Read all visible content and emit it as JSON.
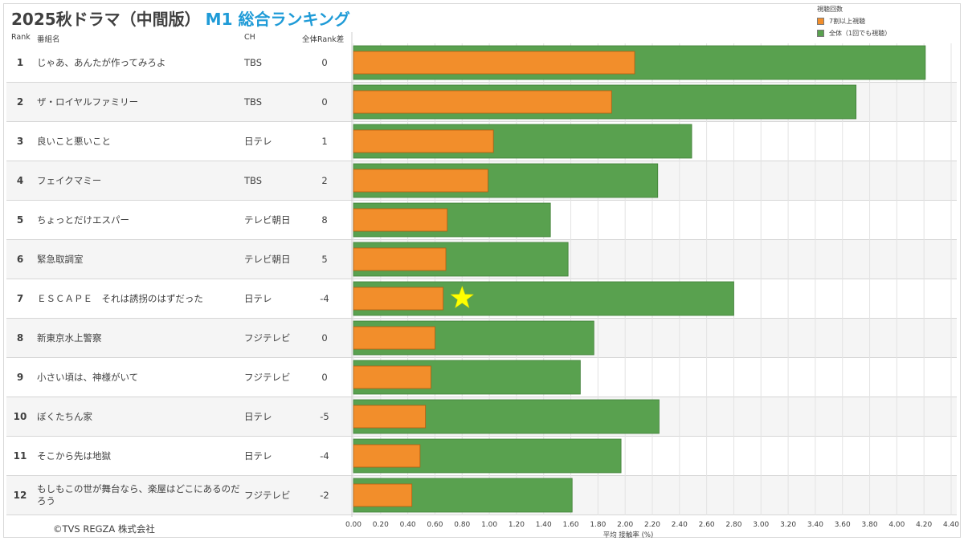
{
  "header": {
    "title_main": "2025秋ドラマ（中間版）",
    "title_sub": "M1 総合ランキング",
    "col_rank": "Rank",
    "col_name": "番組名",
    "col_ch": "CH",
    "col_diff": "全体Rank差"
  },
  "legend": {
    "title": "視聴回数",
    "items": [
      {
        "label": "7割以上視聴",
        "color": "#f28e2b"
      },
      {
        "label": "全体（1回でも視聴）",
        "color": "#59a14f"
      }
    ]
  },
  "rows": [
    {
      "rank": "1",
      "name": "じゃあ、あんたが作ってみろよ",
      "ch": "TBS",
      "diff": "0"
    },
    {
      "rank": "2",
      "name": "ザ・ロイヤルファミリー",
      "ch": "TBS",
      "diff": "0"
    },
    {
      "rank": "3",
      "name": "良いこと悪いこと",
      "ch": "日テレ",
      "diff": "1"
    },
    {
      "rank": "4",
      "name": "フェイクマミー",
      "ch": "TBS",
      "diff": "2"
    },
    {
      "rank": "5",
      "name": "ちょっとだけエスパー",
      "ch": "テレビ朝日",
      "diff": "8"
    },
    {
      "rank": "6",
      "name": "緊急取調室",
      "ch": "テレビ朝日",
      "diff": "5"
    },
    {
      "rank": "7",
      "name": "ＥＳＣＡＰＥ　それは誘拐のはずだった",
      "ch": "日テレ",
      "diff": "-4"
    },
    {
      "rank": "8",
      "name": "新東京水上警察",
      "ch": "フジテレビ",
      "diff": "0"
    },
    {
      "rank": "9",
      "name": "小さい頃は、神様がいて",
      "ch": "フジテレビ",
      "diff": "0"
    },
    {
      "rank": "10",
      "name": "ぼくたちん家",
      "ch": "日テレ",
      "diff": "-5"
    },
    {
      "rank": "11",
      "name": "そこから先は地獄",
      "ch": "日テレ",
      "diff": "-4"
    },
    {
      "rank": "12",
      "name": "もしもこの世が舞台なら、楽屋はどこにあるのだろう",
      "ch": "フジテレビ",
      "diff": "-2"
    }
  ],
  "chart_data": {
    "type": "bar",
    "orientation": "horizontal",
    "xlabel": "平均 接触率 (%)",
    "xlim": [
      0,
      4.4
    ],
    "xticks": [
      "0.00",
      "0.20",
      "0.40",
      "0.60",
      "0.80",
      "1.00",
      "1.20",
      "1.40",
      "1.60",
      "1.80",
      "2.00",
      "2.20",
      "2.40",
      "2.60",
      "2.80",
      "3.00",
      "3.20",
      "3.40",
      "3.60",
      "3.80",
      "4.00",
      "4.20",
      "4.40"
    ],
    "grid": true,
    "categories": [
      "じゃあ、あんたが作ってみろよ",
      "ザ・ロイヤルファミリー",
      "良いこと悪いこと",
      "フェイクマミー",
      "ちょっとだけエスパー",
      "緊急取調室",
      "ＥＳＣＡＰＥ　それは誘拐のはずだった",
      "新東京水上警察",
      "小さい頃は、神様がいて",
      "ぼくたちん家",
      "そこから先は地獄",
      "もしもこの世が舞台なら、楽屋はどこにあるのだろう"
    ],
    "series": [
      {
        "name": "全体（1回でも視聴）",
        "color": "#59a14f",
        "values": [
          4.21,
          3.7,
          2.49,
          2.24,
          1.45,
          1.58,
          2.8,
          1.77,
          1.67,
          2.25,
          1.97,
          1.61
        ]
      },
      {
        "name": "7割以上視聴",
        "color": "#f28e2b",
        "values": [
          2.07,
          1.9,
          1.03,
          0.99,
          0.69,
          0.68,
          0.66,
          0.6,
          0.57,
          0.53,
          0.49,
          0.43
        ]
      }
    ],
    "highlight": {
      "row": 6,
      "marker": "star",
      "x": 0.8,
      "color": "#ffff00"
    }
  },
  "footer": {
    "copyright": "©TVS REGZA 株式会社"
  }
}
